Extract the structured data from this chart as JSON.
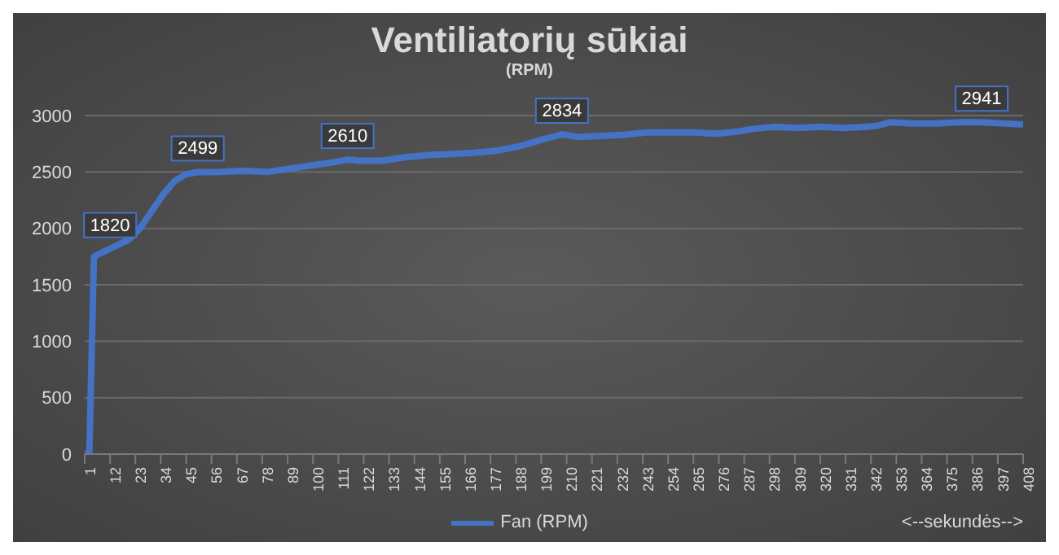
{
  "chart_data": {
    "type": "line",
    "title": "Ventiliatorių sūkiai",
    "subtitle": "(RPM)",
    "x": [
      1,
      3,
      5,
      8,
      12,
      16,
      20,
      25,
      30,
      35,
      40,
      45,
      50,
      60,
      70,
      80,
      90,
      100,
      110,
      115,
      120,
      130,
      140,
      150,
      160,
      170,
      180,
      190,
      200,
      208,
      215,
      225,
      235,
      245,
      255,
      265,
      275,
      285,
      290,
      300,
      310,
      320,
      330,
      340,
      345,
      350,
      360,
      370,
      380,
      390,
      400,
      408
    ],
    "series": [
      {
        "name": "Fan (RPM)",
        "color": "#4472c4",
        "values": [
          0,
          0,
          1750,
          1780,
          1820,
          1860,
          1900,
          2000,
          2150,
          2300,
          2420,
          2480,
          2499,
          2500,
          2510,
          2500,
          2530,
          2560,
          2590,
          2610,
          2600,
          2600,
          2630,
          2650,
          2660,
          2670,
          2690,
          2730,
          2790,
          2834,
          2810,
          2820,
          2830,
          2850,
          2850,
          2850,
          2840,
          2860,
          2880,
          2900,
          2890,
          2900,
          2890,
          2900,
          2910,
          2940,
          2930,
          2930,
          2940,
          2941,
          2930,
          2920
        ]
      }
    ],
    "xlim": [
      1,
      408
    ],
    "xticks": [
      1,
      12,
      23,
      34,
      45,
      56,
      67,
      78,
      89,
      100,
      111,
      122,
      133,
      144,
      155,
      166,
      177,
      188,
      199,
      210,
      221,
      232,
      243,
      254,
      265,
      276,
      287,
      298,
      309,
      320,
      331,
      342,
      353,
      364,
      375,
      386,
      397,
      408
    ],
    "ylim": [
      0,
      3000
    ],
    "yticks": [
      0,
      500,
      1000,
      1500,
      2000,
      2500,
      3000
    ],
    "annotations": [
      {
        "text": "1820",
        "x": 12,
        "y": 1820
      },
      {
        "text": "2499",
        "x": 50,
        "y": 2499
      },
      {
        "text": "2610",
        "x": 115,
        "y": 2610
      },
      {
        "text": "2834",
        "x": 208,
        "y": 2834
      },
      {
        "text": "2941",
        "x": 390,
        "y": 2941
      },
      "<--sekundės-->"
    ],
    "grid": "y",
    "legend": "bottom",
    "marker": "none",
    "line_style": "solid"
  }
}
